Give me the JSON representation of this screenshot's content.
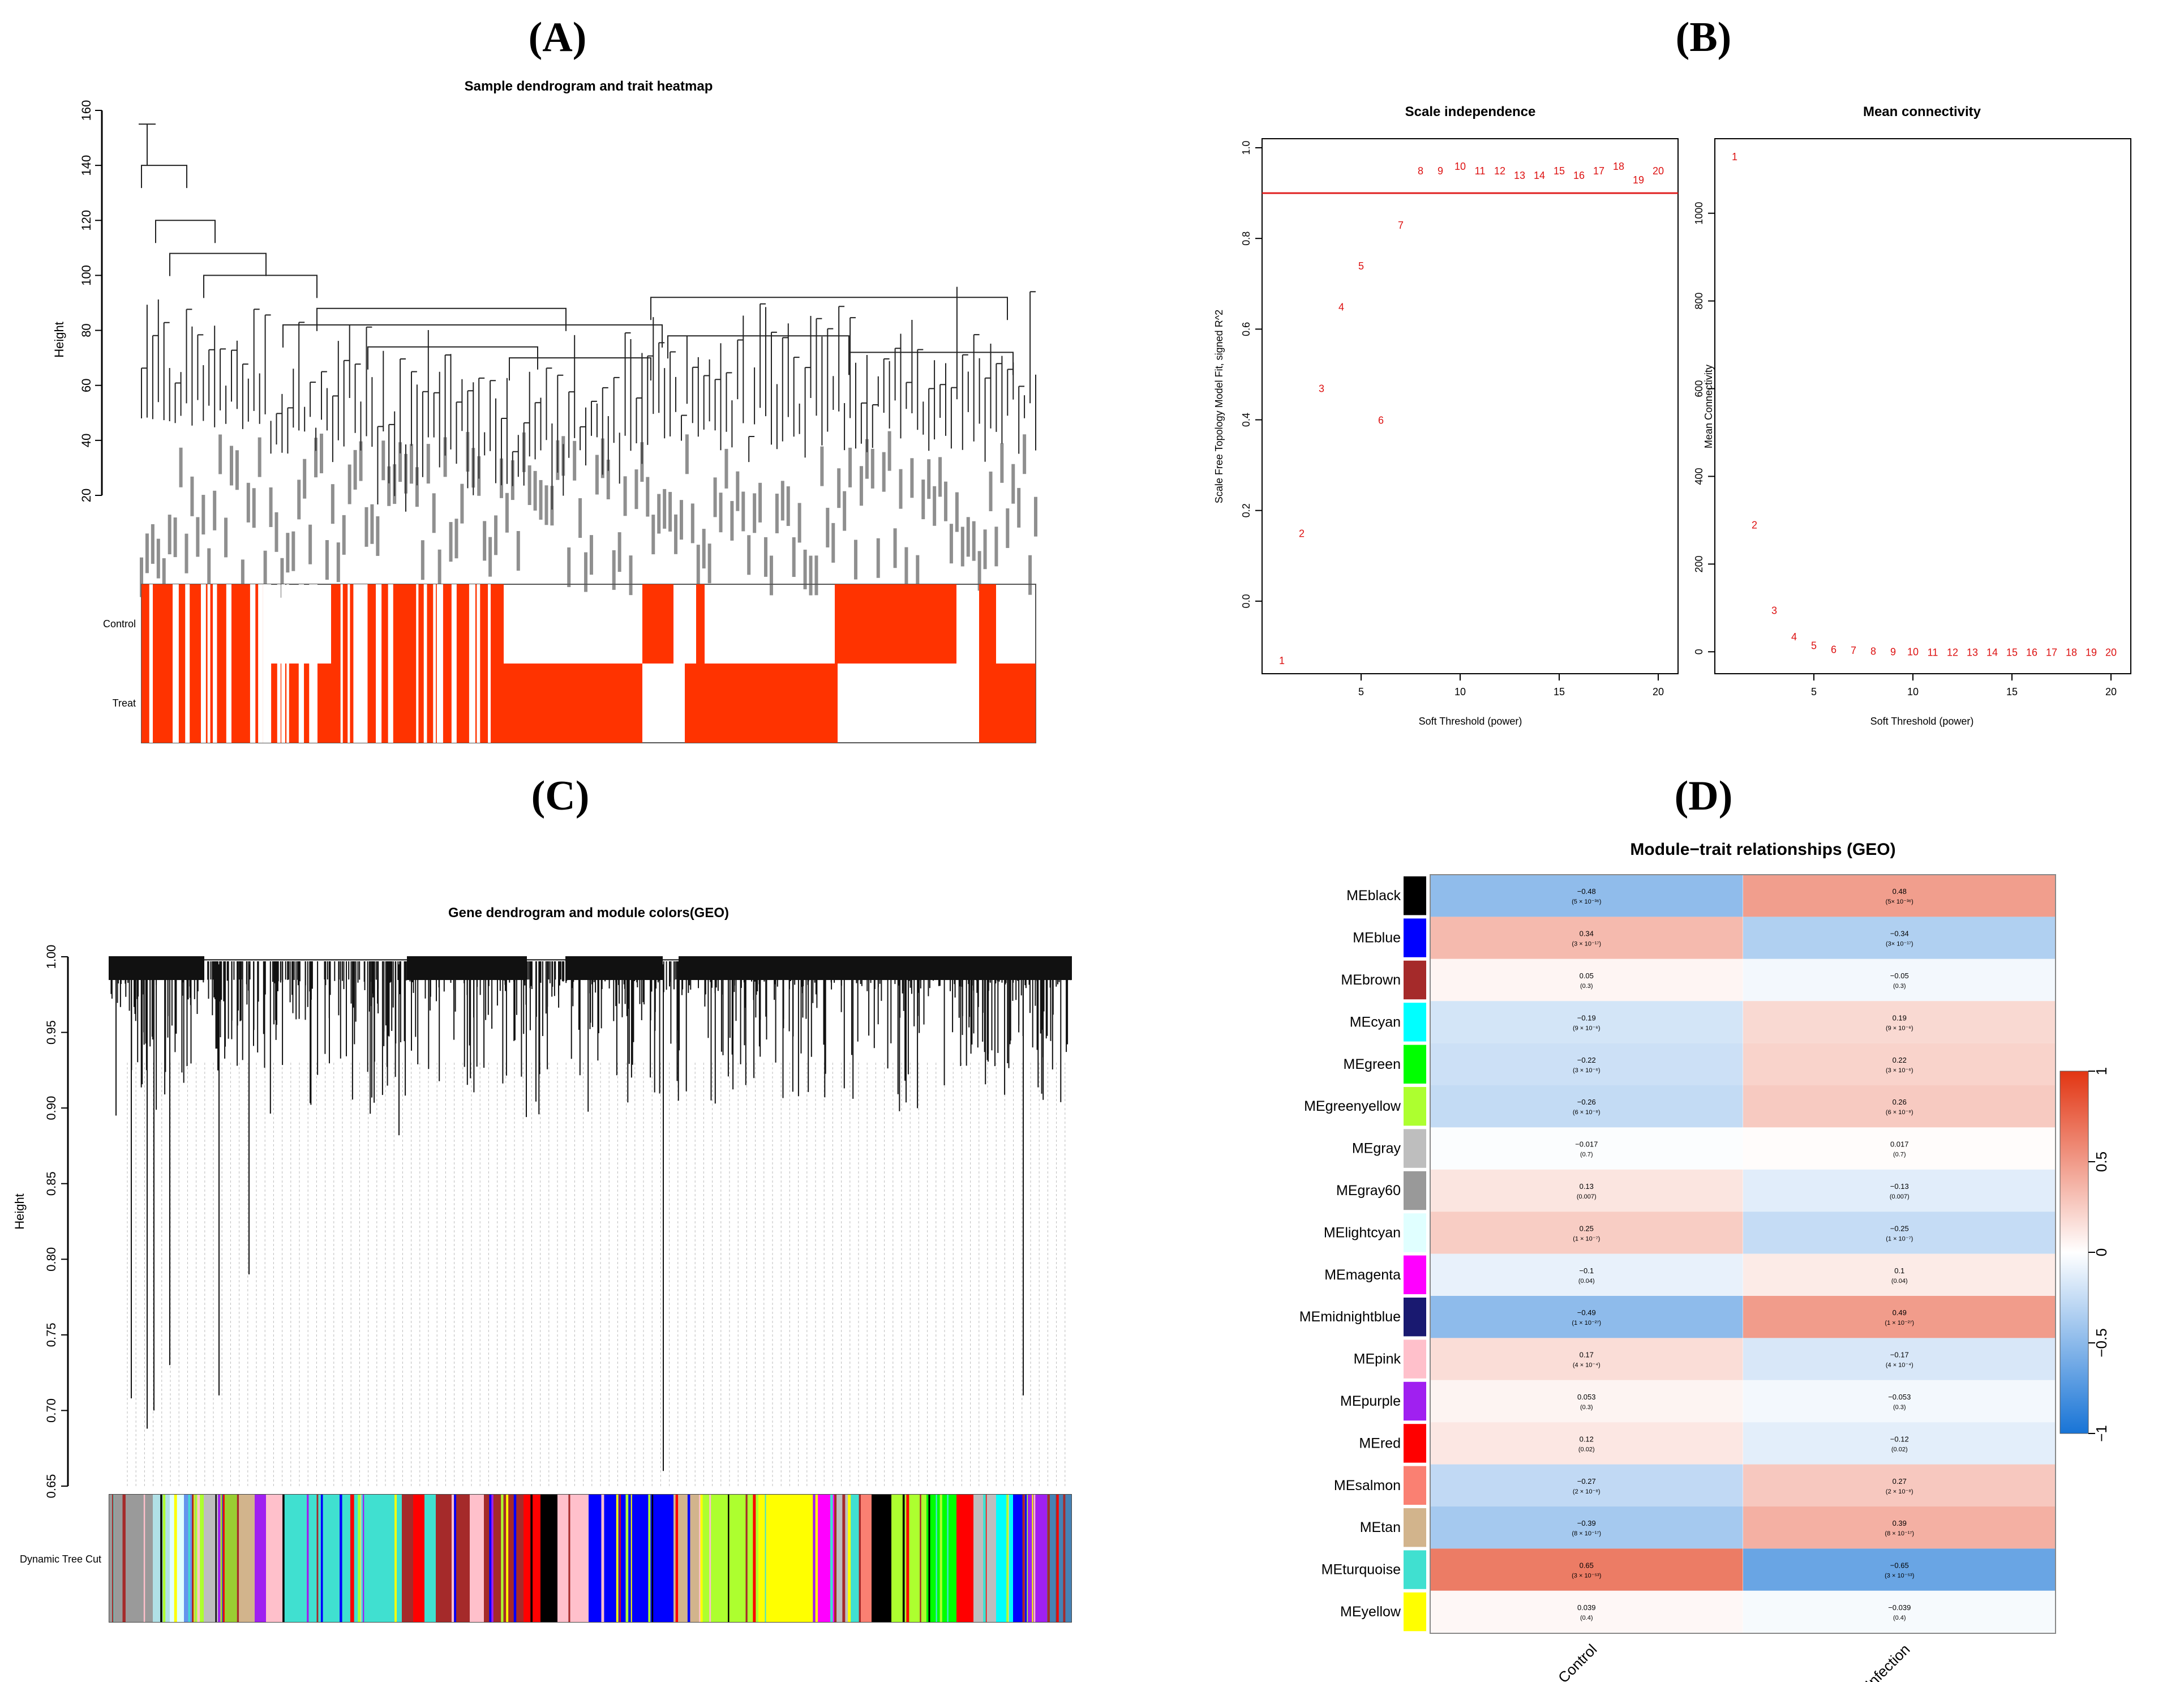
{
  "panels": {
    "A": {
      "label": "(A)",
      "title": "Sample dendrogram and trait heatmap",
      "ylabel": "Height",
      "yticks": [
        "20",
        "40",
        "60",
        "80",
        "100",
        "120",
        "140",
        "160"
      ],
      "traits": [
        "Control",
        "Treat"
      ],
      "colors": {
        "trait": "#ff3300"
      }
    },
    "B": {
      "label": "(B)",
      "left_title": "Scale independence",
      "right_title": "Mean connectivity",
      "left_ylabel": "Scale Free Topology Model Fit, signed R^2",
      "right_ylabel": "Mean Connectivity",
      "xlabel": "Soft Threshold (power)",
      "left_yticks": [
        "0.0",
        "0.2",
        "0.4",
        "0.6",
        "0.8",
        "1.0"
      ],
      "right_yticks": [
        "0",
        "200",
        "400",
        "600",
        "800",
        "1000"
      ],
      "xticks": [
        "5",
        "10",
        "15",
        "20"
      ],
      "color": "#dd1111"
    },
    "C": {
      "label": "(C)",
      "title": "Gene dendrogram and module colors(GEO)",
      "ylabel": "Height",
      "yticks": [
        "0.65",
        "0.70",
        "0.75",
        "0.80",
        "0.85",
        "0.90",
        "0.95",
        "1.00"
      ],
      "track_label": "Dynamic Tree Cut"
    },
    "D": {
      "label": "(D)",
      "title": "Module−trait relationships (GEO)",
      "columns": [
        "Control",
        "Infection"
      ],
      "legend_ticks": [
        "1",
        "0.5",
        "0",
        "−0.5",
        "−1"
      ]
    }
  },
  "chart_data": [
    {
      "type": "heatmap",
      "title": "Sample dendrogram and trait heatmap",
      "ylabel": "Height",
      "ylim": [
        20,
        160
      ],
      "rows": [
        "Control",
        "Treat"
      ]
    },
    {
      "type": "scatter",
      "title": "Scale independence",
      "xlabel": "Soft Threshold (power)",
      "ylabel": "Scale Free Topology Model Fit, signed R^2",
      "xlim": [
        1,
        20
      ],
      "ylim": [
        -0.13,
        1.0
      ],
      "x": [
        1,
        2,
        3,
        4,
        5,
        6,
        7,
        8,
        9,
        10,
        11,
        12,
        13,
        14,
        15,
        16,
        17,
        18,
        19,
        20
      ],
      "y": [
        -0.13,
        0.15,
        0.47,
        0.65,
        0.74,
        0.4,
        0.83,
        0.95,
        0.95,
        0.96,
        0.95,
        0.95,
        0.94,
        0.94,
        0.95,
        0.94,
        0.95,
        0.96,
        0.93,
        0.95
      ],
      "hline": 0.9
    },
    {
      "type": "scatter",
      "title": "Mean connectivity",
      "xlabel": "Soft Threshold (power)",
      "ylabel": "Mean Connectivity",
      "xlim": [
        1,
        20
      ],
      "ylim": [
        0,
        1150
      ],
      "x": [
        1,
        2,
        3,
        4,
        5,
        6,
        7,
        8,
        9,
        10,
        11,
        12,
        13,
        14,
        15,
        16,
        17,
        18,
        19,
        20
      ],
      "y": [
        1130,
        290,
        95,
        35,
        15,
        6,
        4,
        2,
        1,
        1,
        0,
        0,
        0,
        0,
        0,
        0,
        0,
        0,
        0,
        0
      ]
    },
    {
      "type": "heatmap",
      "title": "Gene dendrogram and module colors(GEO)",
      "ylabel": "Height",
      "ylim": [
        0.65,
        1.0
      ]
    },
    {
      "type": "heatmap",
      "title": "Module−trait relationships (GEO)",
      "columns": [
        "Control",
        "Infection"
      ],
      "rows": [
        {
          "name": "MEblack",
          "color": "#000000",
          "values": [
            -0.48,
            0.48
          ],
          "p": [
            "(5 × 10⁻³⁶)",
            "(5× 10⁻³⁶)"
          ]
        },
        {
          "name": "MEblue",
          "color": "#0000ff",
          "values": [
            0.34,
            -0.34
          ],
          "p": [
            "(3 × 10⁻¹⁷)",
            "(3× 10⁻¹⁷)"
          ]
        },
        {
          "name": "MEbrown",
          "color": "#a52a2a",
          "values": [
            0.05,
            -0.05
          ],
          "p": [
            "(0.3)",
            "(0.3)"
          ]
        },
        {
          "name": "MEcyan",
          "color": "#00ffff",
          "values": [
            -0.19,
            0.19
          ],
          "p": [
            "(9 × 10⁻⁶)",
            "(9 × 10⁻⁶)"
          ]
        },
        {
          "name": "MEgreen",
          "color": "#00ff00",
          "values": [
            -0.22,
            0.22
          ],
          "p": [
            "(3 × 10⁻⁶)",
            "(3 × 10⁻⁶)"
          ]
        },
        {
          "name": "MEgreenyellow",
          "color": "#adff2f",
          "values": [
            -0.26,
            0.26
          ],
          "p": [
            "(6 × 10⁻⁸)",
            "(6 × 10⁻⁸)"
          ]
        },
        {
          "name": "MEgray",
          "color": "#bebebe",
          "values": [
            -0.017,
            0.017
          ],
          "p": [
            "(0.7)",
            "(0.7)"
          ]
        },
        {
          "name": "MEgray60",
          "color": "#999999",
          "values": [
            0.13,
            -0.13
          ],
          "p": [
            "(0.007)",
            "(0.007)"
          ]
        },
        {
          "name": "MElightcyan",
          "color": "#e0ffff",
          "values": [
            0.25,
            -0.25
          ],
          "p": [
            "(1 × 10⁻⁷)",
            "(1 × 10⁻⁷)"
          ]
        },
        {
          "name": "MEmagenta",
          "color": "#ff00ff",
          "values": [
            -0.1,
            0.1
          ],
          "p": [
            "(0.04)",
            "(0.04)"
          ]
        },
        {
          "name": "MEmidnightblue",
          "color": "#191970",
          "values": [
            -0.49,
            0.49
          ],
          "p": [
            "(1 × 10⁻²⁷)",
            "(1 × 10⁻²⁷)"
          ]
        },
        {
          "name": "MEpink",
          "color": "#ffc0cb",
          "values": [
            0.17,
            -0.17
          ],
          "p": [
            "(4 × 10⁻⁴)",
            "(4 × 10⁻⁴)"
          ]
        },
        {
          "name": "MEpurple",
          "color": "#a020f0",
          "values": [
            0.053,
            -0.053
          ],
          "p": [
            "(0.3)",
            "(0.3)"
          ]
        },
        {
          "name": "MEred",
          "color": "#ff0000",
          "values": [
            0.12,
            -0.12
          ],
          "p": [
            "(0.02)",
            "(0.02)"
          ]
        },
        {
          "name": "MEsalmon",
          "color": "#fa8072",
          "values": [
            -0.27,
            0.27
          ],
          "p": [
            "(2 × 10⁻⁸)",
            "(2 × 10⁻⁸)"
          ]
        },
        {
          "name": "MEtan",
          "color": "#d2b48c",
          "values": [
            -0.39,
            0.39
          ],
          "p": [
            "(8 × 10⁻¹⁷)",
            "(8 × 10⁻¹⁷)"
          ]
        },
        {
          "name": "MEturquoise",
          "color": "#40e0d0",
          "values": [
            0.65,
            -0.65
          ],
          "p": [
            "(3 × 10⁻⁵³)",
            "(3 × 10⁻⁵³)"
          ]
        },
        {
          "name": "MEyellow",
          "color": "#ffff00",
          "values": [
            0.039,
            -0.039
          ],
          "p": [
            "(0.4)",
            "(0.4)"
          ]
        }
      ],
      "legend_range": [
        -1,
        1
      ]
    }
  ]
}
